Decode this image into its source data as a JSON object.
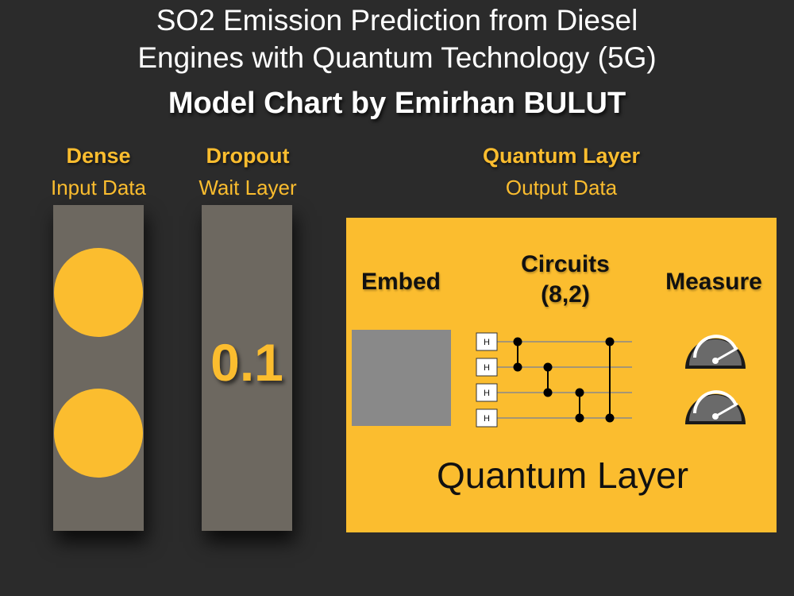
{
  "title": {
    "line1": "SO2 Emission Prediction from Diesel",
    "line2": "Engines with Quantum Technology (5G)",
    "line3": "Model Chart by Emirhan BULUT"
  },
  "columns": {
    "dense": {
      "heading": "Dense",
      "subheading": "Input Data"
    },
    "dropout": {
      "heading": "Dropout",
      "subheading": "Wait Layer",
      "value": "0.1"
    },
    "quantum": {
      "heading": "Quantum Layer",
      "subheading": "Output Data"
    }
  },
  "quantum_box": {
    "embed_label": "Embed",
    "circuits_label_line1": "Circuits",
    "circuits_label_line2": "(8,2)",
    "measure_label": "Measure",
    "footer_label": "Quantum Layer",
    "gate_label": "H",
    "qubit_count": 4,
    "gauge_count": 2
  },
  "colors": {
    "background": "#2b2b2b",
    "accent": "#fbbd2f",
    "panel": "#6d6860",
    "embed": "#898989"
  },
  "icons": [
    "hadamard-gate-icon",
    "cnot-gate-icon",
    "gauge-meter-icon"
  ]
}
